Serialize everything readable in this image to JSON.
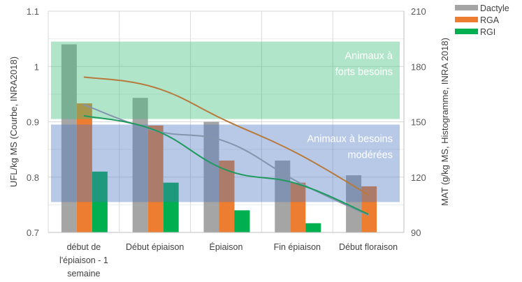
{
  "chart_data": {
    "type": "bar+line",
    "categories": [
      "début de l'épiaison - 1 semaine",
      "Début épiaison",
      "Épiaison",
      "Fin épiaison",
      "Début floraison"
    ],
    "category_lines": [
      [
        "début de",
        "l'épiaison - 1",
        "semaine"
      ],
      [
        "Début épiaison"
      ],
      [
        "Épiaison"
      ],
      [
        "Fin épiaison"
      ],
      [
        "Début floraison"
      ]
    ],
    "ylabel_left": "UFL/kg MS (Courbe, INRA2018)",
    "ylabel_right": "MAT (g/kg MS, Histogramme, INRA 2018)",
    "ylim_left": [
      0.7,
      1.1
    ],
    "ylim_right": [
      90,
      210
    ],
    "yticks_left": [
      "0.7",
      "0.8",
      "0.9",
      "1",
      "1.1"
    ],
    "yticks_right": [
      "90",
      "120",
      "150",
      "180",
      "210"
    ],
    "grid": true,
    "legend_position": "top-right",
    "bar_series_axis": "right",
    "bar_series": [
      {
        "name": "Dactyle",
        "color": "#a5a5a5",
        "values": [
          192,
          163,
          150,
          129,
          121
        ]
      },
      {
        "name": "RGA",
        "color": "#ed7d31",
        "values": [
          160,
          148,
          129,
          117,
          115
        ]
      },
      {
        "name": "RGI",
        "color": "#00b050",
        "values": [
          123,
          117,
          102,
          95,
          null
        ]
      }
    ],
    "line_series_axis": "left",
    "line_series": [
      {
        "series": "RGA",
        "color": "#b87a3c",
        "values": [
          0.981,
          0.962,
          0.902,
          0.843,
          0.768
        ]
      },
      {
        "series": "Dactyle",
        "color": "#8395ae",
        "values": [
          0.931,
          0.884,
          0.864,
          0.792,
          0.731
        ]
      },
      {
        "series": "RGI",
        "color": "#1e9a5e",
        "values": [
          0.911,
          0.885,
          0.813,
          0.788,
          0.733
        ]
      }
    ],
    "bands": [
      {
        "label_lines": [
          "Animaux à",
          "forts besoins"
        ],
        "ufl_range": [
          0.905,
          1.045
        ],
        "color": "#3cbf7a"
      },
      {
        "label_lines": [
          "Animaux à besoins",
          "modérées"
        ],
        "ufl_range": [
          0.755,
          0.895
        ],
        "color": "#4a78c0"
      }
    ]
  }
}
